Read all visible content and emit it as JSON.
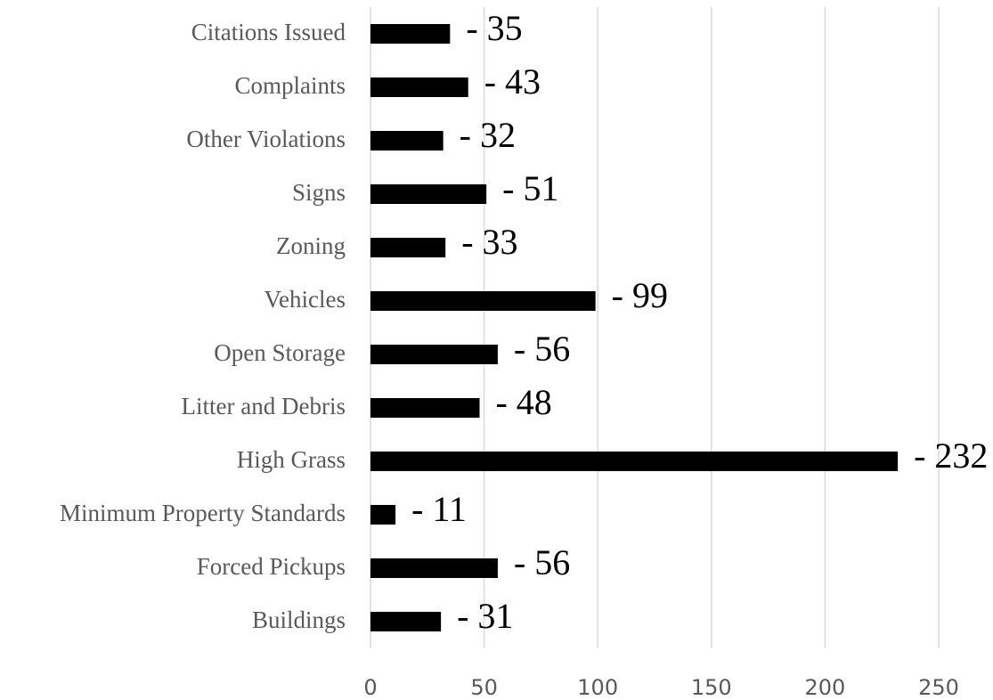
{
  "chart_data": {
    "type": "bar",
    "orientation": "horizontal",
    "categories": [
      "Citations Issued",
      "Complaints",
      "Other Violations",
      "Signs",
      "Zoning",
      "Vehicles",
      "Open Storage",
      "Litter and Debris",
      "High Grass",
      "Minimum Property Standards",
      "Forced Pickups",
      "Buildings"
    ],
    "values": [
      35,
      43,
      32,
      51,
      33,
      99,
      56,
      48,
      232,
      11,
      56,
      31
    ],
    "value_labels": [
      "- 35",
      "- 43",
      "- 32",
      "- 51",
      "- 33",
      "- 99",
      "- 56",
      "- 48",
      "- 232",
      "- 11",
      "- 56",
      "- 31"
    ],
    "color": "#000000",
    "xlim": [
      0,
      250
    ],
    "xticks": [
      0,
      50,
      100,
      150,
      200,
      250
    ],
    "grid": true
  }
}
